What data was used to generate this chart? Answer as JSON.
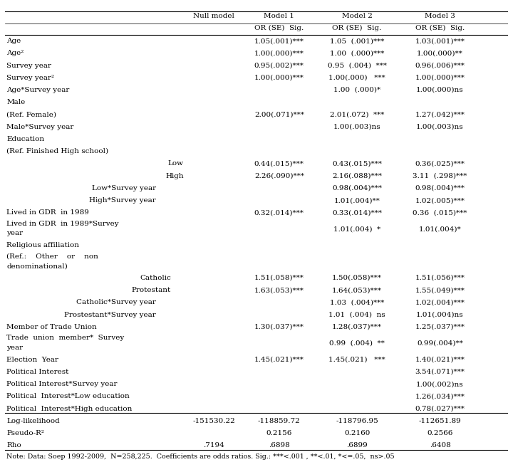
{
  "note": "Note: Data: Soep 1992-2009,  N=258,225.  Coefficients are odds ratios. Sig.: ***<.001 , **<.01, *<=.05,  ns>.05",
  "headers": [
    "Null model",
    "Model 1",
    "Model 2",
    "Model 3"
  ],
  "subheaders": [
    "OR (SE)  Sig.",
    "OR (SE)  Sig.",
    "OR (SE)  Sig."
  ],
  "rows": [
    {
      "label": "Age",
      "indent": 0,
      "multiline": false,
      "m1": "1.05(.001)***",
      "m2": "1.05  (.001)***",
      "m3": "1.03(.001)***"
    },
    {
      "label": "Age²",
      "indent": 0,
      "multiline": false,
      "m1": "1.00(.000)***",
      "m2": "1.00  (.000)***",
      "m3": "1.00(.000)**"
    },
    {
      "label": "Survey year",
      "indent": 0,
      "multiline": false,
      "m1": "0.95(.002)***",
      "m2": "0.95  (.004)  ***",
      "m3": "0.96(.006)***"
    },
    {
      "label": "Survey year²",
      "indent": 0,
      "multiline": false,
      "m1": "1.00(.000)***",
      "m2": "1.00(.000)   ***",
      "m3": "1.00(.000)***"
    },
    {
      "label": "Age*Survey year",
      "indent": 0,
      "multiline": false,
      "m1": "",
      "m2": "1.00  (.000)*",
      "m3": "1.00(.000)ns"
    },
    {
      "label": "Male",
      "indent": 0,
      "multiline": false,
      "m1": "",
      "m2": "",
      "m3": ""
    },
    {
      "label": "(Ref. Female)",
      "indent": 0,
      "multiline": false,
      "m1": "2.00(.071)***",
      "m2": "2.01(.072)  ***",
      "m3": "1.27(.042)***"
    },
    {
      "label": "Male*Survey year",
      "indent": 0,
      "multiline": false,
      "m1": "",
      "m2": "1.00(.003)ns",
      "m3": "1.00(.003)ns"
    },
    {
      "label": "Education",
      "indent": 0,
      "multiline": false,
      "m1": "",
      "m2": "",
      "m3": ""
    },
    {
      "label": "(Ref. Finished High school)",
      "indent": 0,
      "multiline": false,
      "m1": "",
      "m2": "",
      "m3": ""
    },
    {
      "label": "Low",
      "indent": 1,
      "multiline": false,
      "m1": "0.44(.015)***",
      "m2": "0.43(.015)***",
      "m3": "0.36(.025)***"
    },
    {
      "label": "High",
      "indent": 1,
      "multiline": false,
      "m1": "2.26(.090)***",
      "m2": "2.16(.088)***",
      "m3": "3.11  (.298)***"
    },
    {
      "label": "Low*Survey year",
      "indent": 2,
      "multiline": false,
      "m1": "",
      "m2": "0.98(.004)***",
      "m3": "0.98(.004)***"
    },
    {
      "label": "High*Survey year",
      "indent": 2,
      "multiline": false,
      "m1": "",
      "m2": "1.01(.004)**",
      "m3": "1.02(.005)***"
    },
    {
      "label": "Lived in GDR  in 1989",
      "indent": 0,
      "multiline": false,
      "m1": "0.32(.014)***",
      "m2": "0.33(.014)***",
      "m3": "0.36  (.015)***"
    },
    {
      "label": "Lived in GDR  in 1989*Survey\nyear",
      "indent": 0,
      "multiline": true,
      "m1": "",
      "m2": "1.01(.004)  *",
      "m3": "1.01(.004)*"
    },
    {
      "label": "Religious affiliation",
      "indent": 0,
      "multiline": false,
      "m1": "",
      "m2": "",
      "m3": ""
    },
    {
      "label": "(Ref.:    Other    or    non\ndenominational)",
      "indent": 0,
      "multiline": true,
      "m1": "",
      "m2": "",
      "m3": ""
    },
    {
      "label": "Catholic",
      "indent": 3,
      "multiline": false,
      "m1": "1.51(.058)***",
      "m2": "1.50(.058)***",
      "m3": "1.51(.056)***"
    },
    {
      "label": "Protestant",
      "indent": 3,
      "multiline": false,
      "m1": "1.63(.053)***",
      "m2": "1.64(.053)***",
      "m3": "1.55(.049)***"
    },
    {
      "label": "Catholic*Survey year",
      "indent": 2,
      "multiline": false,
      "m1": "",
      "m2": "1.03  (.004)***",
      "m3": "1.02(.004)***"
    },
    {
      "label": "Prostestant*Survey year",
      "indent": 2,
      "multiline": false,
      "m1": "",
      "m2": "1.01  (.004)  ns",
      "m3": "1.01(.004)ns"
    },
    {
      "label": "Member of Trade Union",
      "indent": 0,
      "multiline": false,
      "m1": "1.30(.037)***",
      "m2": "1.28(.037)***",
      "m3": "1.25(.037)***"
    },
    {
      "label": "Trade  union  member*  Survey\nyear",
      "indent": 0,
      "multiline": true,
      "m1": "",
      "m2": "0.99  (.004)  **",
      "m3": "0.99(.004)**"
    },
    {
      "label": "Election  Year",
      "indent": 0,
      "multiline": false,
      "m1": "1.45(.021)***",
      "m2": "1.45(.021)   ***",
      "m3": "1.40(.021)***"
    },
    {
      "label": "Political Interest",
      "indent": 0,
      "multiline": false,
      "m1": "",
      "m2": "",
      "m3": "3.54(.071)***"
    },
    {
      "label": "Political Interest*Survey year",
      "indent": 0,
      "multiline": false,
      "m1": "",
      "m2": "",
      "m3": "1.00(.002)ns"
    },
    {
      "label": "Political  Interest*Low education",
      "indent": 0,
      "multiline": false,
      "m1": "",
      "m2": "",
      "m3": "1.26(.034)***"
    },
    {
      "label": "Political  Interest*High education",
      "indent": 0,
      "multiline": false,
      "m1": "",
      "m2": "",
      "m3": "0.78(.027)***"
    }
  ],
  "bottom_rows": [
    {
      "label": "Log-likelihood",
      "null": "-151530.22",
      "m1": "-118859.72",
      "m2": "-118796.95",
      "m3": "-112651.89"
    },
    {
      "label": "Pseudo-R²",
      "null": "",
      "m1": "0.2156",
      "m2": "0.2160",
      "m3": "0.2566"
    },
    {
      "label": "Rho",
      "null": ".7194",
      "m1": ".6898",
      "m2": ".6899",
      "m3": ".6408"
    }
  ],
  "bg_color": "#ffffff",
  "text_color": "#000000",
  "font_size": 7.5,
  "line_color": "#000000"
}
